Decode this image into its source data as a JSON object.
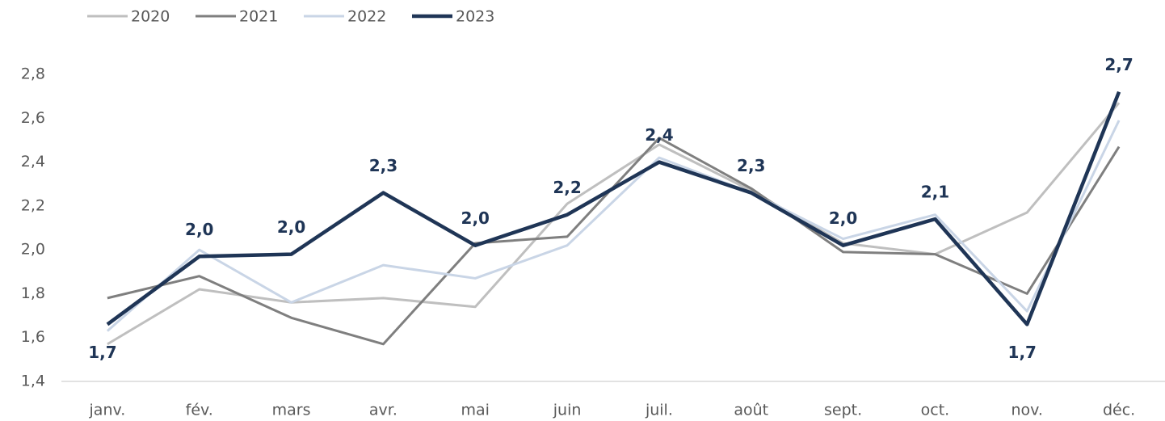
{
  "chart_data": {
    "type": "line",
    "categories": [
      "janv.",
      "fév.",
      "mars",
      "avr.",
      "mai",
      "juin",
      "juil.",
      "août",
      "sept.",
      "oct.",
      "nov.",
      "déc."
    ],
    "series": [
      {
        "name": "2020",
        "color": "#bfbfbf",
        "values": [
          1.57,
          1.82,
          1.76,
          1.78,
          1.74,
          2.21,
          2.48,
          2.27,
          2.03,
          1.98,
          2.17,
          2.67
        ]
      },
      {
        "name": "2021",
        "color": "#7f7f7f",
        "values": [
          1.78,
          1.88,
          1.69,
          1.57,
          2.03,
          2.06,
          2.51,
          2.28,
          1.99,
          1.98,
          1.8,
          2.47
        ]
      },
      {
        "name": "2022",
        "color": "#c9d5e6",
        "values": [
          1.63,
          2.0,
          1.76,
          1.93,
          1.87,
          2.02,
          2.42,
          2.26,
          2.05,
          2.16,
          1.72,
          2.59
        ]
      },
      {
        "name": "2023",
        "color": "#1f3556",
        "values": [
          1.66,
          1.97,
          1.98,
          2.26,
          2.02,
          2.16,
          2.4,
          2.26,
          2.02,
          2.14,
          1.66,
          2.72
        ],
        "value_labels": [
          "1,7",
          "2,0",
          "2,0",
          "2,3",
          "2,0",
          "2,2",
          "2,4",
          "2,3",
          "2,0",
          "2,1",
          "1,7",
          "2,7"
        ]
      }
    ],
    "ylim": [
      1.4,
      2.8
    ],
    "yticks": [
      {
        "value": 1.4,
        "label": "1,4"
      },
      {
        "value": 1.6,
        "label": "1,6"
      },
      {
        "value": 1.8,
        "label": "1,8"
      },
      {
        "value": 2.0,
        "label": "2,0"
      },
      {
        "value": 2.2,
        "label": "2,2"
      },
      {
        "value": 2.4,
        "label": "2,4"
      },
      {
        "value": 2.6,
        "label": "2,6"
      },
      {
        "value": 2.8,
        "label": "2,8"
      }
    ],
    "grid": false
  }
}
